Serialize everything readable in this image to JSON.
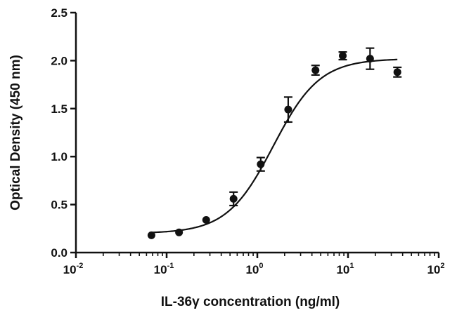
{
  "chart_data": {
    "type": "scatter",
    "xscale": "log",
    "xlim": [
      0.01,
      100
    ],
    "ylim": [
      0,
      2.5
    ],
    "xlabel": "IL-36γ concentration (ng/ml)",
    "ylabel": "Optical Density (450 nm)",
    "xticks": [
      {
        "value": 0.01,
        "base": "10",
        "exp": "-2"
      },
      {
        "value": 0.1,
        "base": "10",
        "exp": "-1"
      },
      {
        "value": 1,
        "base": "10",
        "exp": "0"
      },
      {
        "value": 10,
        "base": "10",
        "exp": "1"
      },
      {
        "value": 100,
        "base": "10",
        "exp": "2"
      }
    ],
    "yticks": [
      "0.0",
      "0.5",
      "1.0",
      "1.5",
      "2.0",
      "2.5"
    ],
    "grid": false,
    "legend": "none",
    "points": [
      {
        "x": 0.068,
        "y": 0.18,
        "err": 0.02
      },
      {
        "x": 0.137,
        "y": 0.21,
        "err": 0.02
      },
      {
        "x": 0.273,
        "y": 0.34,
        "err": 0.02
      },
      {
        "x": 0.547,
        "y": 0.56,
        "err": 0.07
      },
      {
        "x": 1.09,
        "y": 0.92,
        "err": 0.07
      },
      {
        "x": 2.19,
        "y": 1.49,
        "err": 0.13
      },
      {
        "x": 4.38,
        "y": 1.9,
        "err": 0.05
      },
      {
        "x": 8.75,
        "y": 2.05,
        "err": 0.04
      },
      {
        "x": 17.5,
        "y": 2.02,
        "err": 0.11
      },
      {
        "x": 35.0,
        "y": 1.88,
        "err": 0.05
      }
    ],
    "fit": {
      "bottom": 0.2,
      "top": 2.02,
      "ec50": 1.5,
      "hill": 1.7,
      "x_range": [
        0.068,
        35.0
      ]
    }
  }
}
